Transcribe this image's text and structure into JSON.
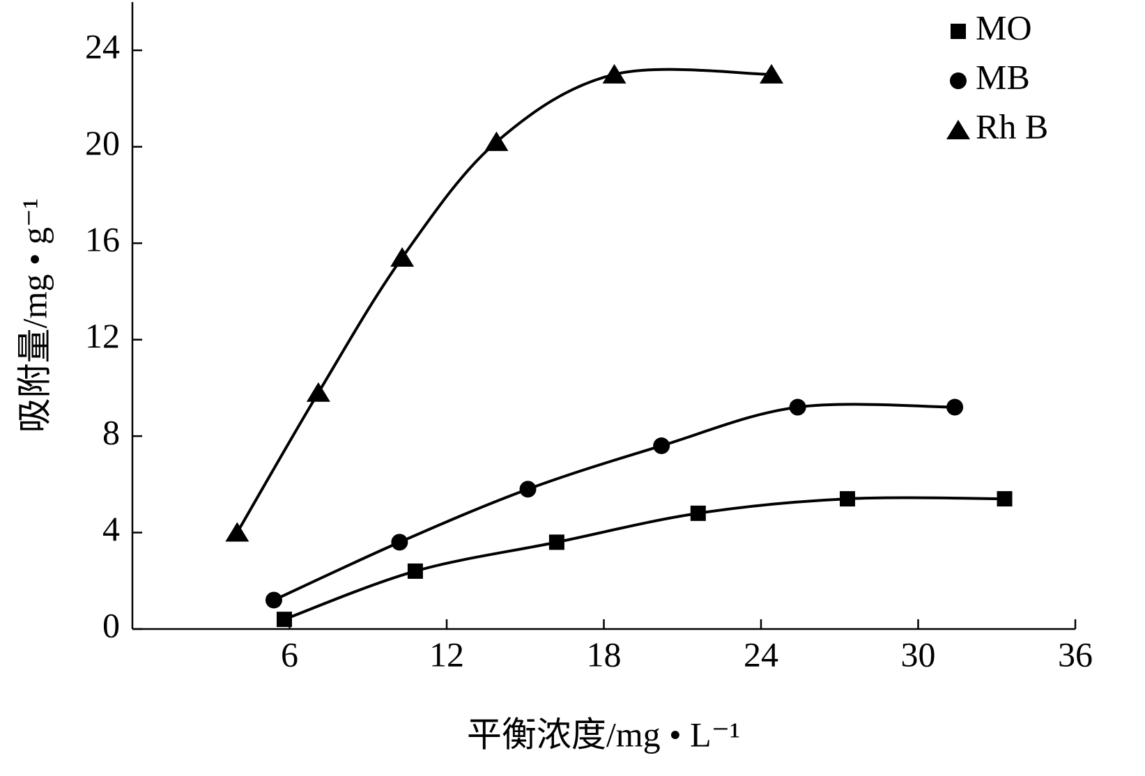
{
  "chart_data": {
    "type": "scatter",
    "x_label": "平衡浓度/mg • L⁻¹",
    "y_label": "吸附量/mg • g⁻¹",
    "xlim": [
      0,
      36
    ],
    "xticks": [
      6,
      12,
      18,
      24,
      30,
      36
    ],
    "ylim": [
      0,
      26
    ],
    "yticks": [
      0,
      4,
      8,
      12,
      16,
      20,
      24
    ],
    "legend": "upper right",
    "series": [
      {
        "name": "MO",
        "color": "#000000",
        "marker": "square",
        "x": [
          5.8,
          10.8,
          16.2,
          21.6,
          27.3,
          33.3
        ],
        "values": [
          0.4,
          2.4,
          3.6,
          4.8,
          5.4,
          5.4
        ]
      },
      {
        "name": "MB",
        "color": "#000000",
        "marker": "circle",
        "x": [
          5.4,
          10.2,
          15.1,
          20.2,
          25.4,
          31.4
        ],
        "values": [
          1.2,
          3.6,
          5.8,
          7.6,
          9.2,
          9.2
        ]
      },
      {
        "name": "Rh B",
        "color": "#000000",
        "marker": "triangle",
        "x": [
          4.0,
          7.1,
          10.3,
          13.9,
          18.4,
          24.4
        ],
        "values": [
          4.0,
          9.8,
          15.4,
          20.2,
          23.0,
          23.0
        ]
      }
    ]
  }
}
